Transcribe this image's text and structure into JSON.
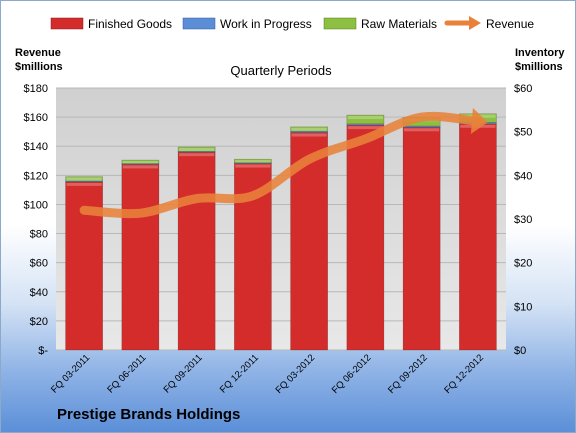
{
  "company_name": "Prestige Brands Holdings",
  "chart_data": {
    "type": "bar",
    "subtype": "stacked-bar-with-line",
    "title": "Quarterly Periods",
    "left_axis_label_line1": "Revenue",
    "left_axis_label_line2": "$millions",
    "right_axis_label_line1": "Inventory",
    "right_axis_label_line2": "$millions",
    "categories": [
      "FQ 03-2011",
      "FQ 06-2011",
      "FQ 09-2011",
      "FQ 12-2011",
      "FQ 03-2012",
      "FQ 06-2012",
      "FQ 09-2012",
      "FQ 12-2012"
    ],
    "left_ticks": [
      "$-",
      "$20",
      "$40",
      "$60",
      "$80",
      "$100",
      "$120",
      "$140",
      "$160",
      "$180"
    ],
    "right_ticks": [
      "$0",
      "$10",
      "$20",
      "$30",
      "$40",
      "$50",
      "$60"
    ],
    "ylim_left": [
      0,
      180
    ],
    "ylim_right": [
      0,
      60
    ],
    "grid": true,
    "legend_position": "top",
    "series": [
      {
        "name": "Finished Goods",
        "axis": "right",
        "kind": "bar",
        "color": "#d42b2b",
        "values": [
          38.5,
          42.5,
          45.3,
          42.7,
          49.8,
          51.5,
          51.0,
          51.8
        ]
      },
      {
        "name": "Work in Progress",
        "axis": "right",
        "kind": "bar",
        "color": "#5b8ed6",
        "values": [
          0.2,
          0.2,
          0.2,
          0.2,
          0.3,
          0.3,
          0.3,
          0.3
        ]
      },
      {
        "name": "Raw Materials",
        "axis": "right",
        "kind": "bar",
        "color": "#8dbf42",
        "values": [
          1.0,
          0.8,
          1.0,
          0.8,
          1.0,
          2.0,
          2.0,
          2.0
        ]
      },
      {
        "name": "Revenue",
        "axis": "left",
        "kind": "line",
        "color": "#e8823a",
        "values": [
          96,
          94,
          104,
          106,
          131,
          145,
          160,
          157
        ]
      }
    ]
  }
}
